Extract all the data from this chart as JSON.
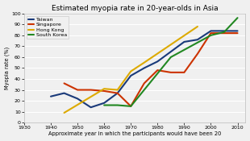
{
  "title": "Estimated myopia rate in 20-year-olds in Asia",
  "xlabel": "Approximate year in which the participants would have been 20",
  "ylabel": "Myopia rate (%)",
  "xlim": [
    1930,
    2013
  ],
  "ylim": [
    0,
    100
  ],
  "xticks": [
    1930,
    1940,
    1950,
    1960,
    1970,
    1980,
    1990,
    2000,
    2010
  ],
  "yticks": [
    0,
    10,
    20,
    30,
    40,
    50,
    60,
    70,
    80,
    90,
    100
  ],
  "background_color": "#f0f0f0",
  "grid_color": "#ffffff",
  "series": [
    {
      "label": "Taiwan",
      "color": "#1a3a7a",
      "linewidth": 1.5,
      "x": [
        1940,
        1945,
        1950,
        1955,
        1960,
        1965,
        1970,
        1975,
        1980,
        1985,
        1990,
        1995,
        2000,
        2005,
        2010
      ],
      "y": [
        24,
        27,
        22,
        14,
        18,
        27,
        43,
        50,
        56,
        65,
        74,
        76,
        84,
        84,
        84
      ]
    },
    {
      "label": "Singapore",
      "color": "#cc3300",
      "linewidth": 1.5,
      "x": [
        1945,
        1950,
        1955,
        1960,
        1965,
        1970,
        1975,
        1980,
        1985,
        1990,
        1995,
        2000,
        2005,
        2010
      ],
      "y": [
        36,
        30,
        30,
        29,
        27,
        15,
        36,
        48,
        46,
        46,
        63,
        82,
        82,
        82
      ]
    },
    {
      "label": "Hong Kong",
      "color": "#ddaa00",
      "linewidth": 1.5,
      "x": [
        1945,
        1960,
        1965,
        1970,
        1975,
        1995
      ],
      "y": [
        9,
        31,
        30,
        47,
        55,
        88
      ]
    },
    {
      "label": "South Korea",
      "color": "#228822",
      "linewidth": 1.5,
      "x": [
        1960,
        1965,
        1970,
        1985,
        2000,
        2005,
        2010
      ],
      "y": [
        16,
        16,
        15,
        60,
        80,
        83,
        96
      ]
    }
  ],
  "title_fontsize": 6.5,
  "axis_label_fontsize": 4.8,
  "tick_fontsize": 4.5,
  "legend_fontsize": 4.5
}
